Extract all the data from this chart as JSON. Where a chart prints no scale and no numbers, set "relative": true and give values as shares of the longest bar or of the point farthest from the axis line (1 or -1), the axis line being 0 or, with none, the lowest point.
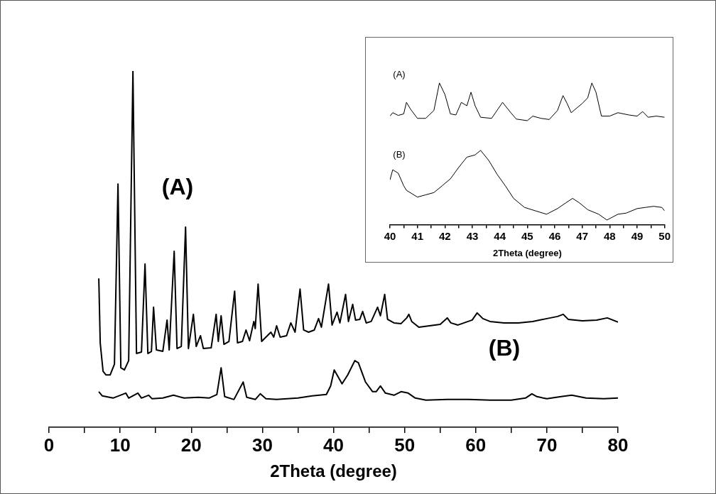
{
  "chart_data": [
    {
      "type": "line",
      "relative": true,
      "xlabel": "2Theta (degree)",
      "xlim": [
        0,
        80
      ],
      "xticks": [
        0,
        {
          "value": 5,
          "label": null
        },
        10,
        {
          "value": 15,
          "label": null
        },
        20,
        {
          "value": 25,
          "label": null
        },
        30,
        {
          "value": 35,
          "label": null
        },
        40,
        {
          "value": 45,
          "label": null
        },
        50,
        {
          "value": 55,
          "label": null
        },
        60,
        {
          "value": 65,
          "label": null
        },
        70,
        {
          "value": 75,
          "label": null
        },
        80
      ],
      "series": [
        {
          "color": "#000000",
          "x": [
            7.0,
            7.2,
            7.6,
            8.0,
            8.6,
            9.2,
            9.7,
            10.1,
            10.6,
            11.2,
            11.8,
            12.3,
            13.0,
            13.5,
            13.9,
            14.4,
            14.7,
            15.1,
            16.0,
            16.6,
            16.9,
            17.6,
            18.0,
            18.6,
            19.2,
            19.6,
            20.3,
            20.7,
            21.3,
            21.7,
            22.8,
            23.5,
            23.8,
            24.2,
            24.6,
            25.3,
            26.1,
            26.5,
            27.2,
            27.7,
            28.2,
            28.8,
            29.0,
            29.4,
            29.9,
            30.5,
            31.2,
            31.6,
            32.0,
            32.5,
            33.4,
            34.0,
            34.6,
            35.3,
            35.8,
            36.5,
            37.3,
            37.9,
            38.3,
            39.3,
            39.8,
            40.5,
            40.9,
            41.7,
            42.1,
            42.7,
            43.1,
            43.7,
            44.1,
            44.6,
            45.3,
            46.2,
            46.6,
            47.2,
            47.6,
            48.5,
            49.5,
            50.3,
            50.6,
            51.0,
            52.0,
            53.5,
            55.0,
            56.0,
            56.5,
            57.5,
            59.5,
            60.2,
            61.0,
            62.0,
            64.0,
            66.0,
            68.0,
            70.0,
            71.5,
            72.3,
            73.0,
            75.0,
            77.0,
            78.5,
            80.0
          ],
          "values": [
            0.418,
            0.237,
            0.157,
            0.147,
            0.147,
            0.177,
            0.683,
            0.167,
            0.161,
            0.187,
            1,
            0.207,
            0.211,
            0.458,
            0.207,
            0.213,
            0.337,
            0.217,
            0.213,
            0.301,
            0.217,
            0.494,
            0.221,
            0.227,
            0.562,
            0.221,
            0.317,
            0.227,
            0.257,
            0.221,
            0.223,
            0.317,
            0.241,
            0.313,
            0.233,
            0.241,
            0.382,
            0.237,
            0.241,
            0.273,
            0.243,
            0.297,
            0.277,
            0.402,
            0.241,
            0.253,
            0.267,
            0.253,
            0.285,
            0.253,
            0.257,
            0.293,
            0.267,
            0.388,
            0.273,
            0.267,
            0.273,
            0.305,
            0.281,
            0.402,
            0.287,
            0.323,
            0.293,
            0.373,
            0.297,
            0.345,
            0.301,
            0.303,
            0.325,
            0.293,
            0.297,
            0.337,
            0.313,
            0.373,
            0.303,
            0.293,
            0.291,
            0.307,
            0.317,
            0.297,
            0.281,
            0.285,
            0.289,
            0.307,
            0.293,
            0.287,
            0.301,
            0.321,
            0.305,
            0.297,
            0.293,
            0.293,
            0.297,
            0.305,
            0.311,
            0.317,
            0.303,
            0.299,
            0.301,
            0.307,
            0.295
          ]
        },
        {
          "color": "#000000",
          "x": [
            7.0,
            7.5,
            9.0,
            10.8,
            11.2,
            12.5,
            13.0,
            14.0,
            14.5,
            16.0,
            17.5,
            19.0,
            21.0,
            22.5,
            23.6,
            24.2,
            24.7,
            26.0,
            27.3,
            27.8,
            29.0,
            29.7,
            30.5,
            32.0,
            35.0,
            37.0,
            39.0,
            39.6,
            40.1,
            40.5,
            41.2,
            42.0,
            43.0,
            43.5,
            44.5,
            45.5,
            46.0,
            46.6,
            47.3,
            48.5,
            49.5,
            50.5,
            51.5,
            53.0,
            56.0,
            59.0,
            62.0,
            65.0,
            67.0,
            67.9,
            68.6,
            70.0,
            72.0,
            73.5,
            75.5,
            78.0,
            80.0
          ],
          "values": [
            0.1,
            0.088,
            0.082,
            0.096,
            0.082,
            0.096,
            0.082,
            0.09,
            0.08,
            0.082,
            0.09,
            0.082,
            0.084,
            0.082,
            0.092,
            0.167,
            0.086,
            0.078,
            0.127,
            0.084,
            0.078,
            0.094,
            0.08,
            0.078,
            0.082,
            0.088,
            0.092,
            0.116,
            0.161,
            0.147,
            0.122,
            0.147,
            0.187,
            0.181,
            0.127,
            0.1,
            0.1,
            0.116,
            0.096,
            0.09,
            0.1,
            0.096,
            0.082,
            0.076,
            0.078,
            0.078,
            0.076,
            0.076,
            0.082,
            0.094,
            0.086,
            0.08,
            0.086,
            0.09,
            0.082,
            0.08,
            0.082
          ]
        }
      ],
      "annotations": [
        "(A)",
        "(B)"
      ]
    },
    {
      "type": "line",
      "relative": true,
      "xlabel": "2Theta (degree)",
      "xlim": [
        40,
        50
      ],
      "xticks": [
        40,
        {
          "value": 40.5,
          "label": null
        },
        41,
        {
          "value": 41.5,
          "label": null
        },
        42,
        {
          "value": 42.5,
          "label": null
        },
        43,
        {
          "value": 43.5,
          "label": null
        },
        44,
        {
          "value": 44.5,
          "label": null
        },
        45,
        {
          "value": 45.5,
          "label": null
        },
        46,
        {
          "value": 46.5,
          "label": null
        },
        47,
        {
          "value": 47.5,
          "label": null
        },
        48,
        {
          "value": 48.5,
          "label": null
        },
        49,
        {
          "value": 49.5,
          "label": null
        },
        50
      ],
      "series": [
        {
          "color": "#000000",
          "x": [
            40.0,
            40.1,
            40.3,
            40.5,
            40.6,
            40.75,
            41.0,
            41.3,
            41.6,
            41.8,
            42.0,
            42.2,
            42.4,
            42.6,
            42.8,
            42.95,
            43.1,
            43.3,
            43.7,
            44.1,
            44.4,
            44.6,
            45.0,
            45.2,
            45.5,
            45.8,
            46.1,
            46.3,
            46.45,
            46.6,
            46.8,
            47.0,
            47.2,
            47.35,
            47.5,
            47.7,
            48.0,
            48.3,
            48.7,
            49.0,
            49.2,
            49.4,
            49.7,
            50.0
          ],
          "values": [
            0.766,
            0.79,
            0.771,
            0.782,
            0.863,
            0.815,
            0.75,
            0.75,
            0.806,
            1,
            0.919,
            0.782,
            0.774,
            0.863,
            0.839,
            0.935,
            0.839,
            0.758,
            0.75,
            0.863,
            0.79,
            0.745,
            0.734,
            0.766,
            0.75,
            0.742,
            0.806,
            0.911,
            0.855,
            0.79,
            0.823,
            0.855,
            0.895,
            1,
            0.935,
            0.766,
            0.766,
            0.79,
            0.774,
            0.766,
            0.798,
            0.758,
            0.766,
            0.758
          ]
        },
        {
          "color": "#000000",
          "x": [
            40.0,
            40.1,
            40.3,
            40.5,
            40.6,
            41.0,
            41.3,
            41.6,
            41.9,
            42.2,
            42.5,
            42.8,
            43.1,
            43.3,
            43.6,
            43.9,
            44.2,
            44.5,
            44.9,
            45.3,
            45.7,
            46.1,
            46.4,
            46.65,
            46.9,
            47.2,
            47.6,
            47.9,
            48.3,
            48.6,
            49.0,
            49.3,
            49.6,
            49.9,
            50.0
          ],
          "values": [
            0.315,
            0.387,
            0.363,
            0.274,
            0.242,
            0.194,
            0.21,
            0.226,
            0.274,
            0.323,
            0.403,
            0.476,
            0.492,
            0.524,
            0.452,
            0.355,
            0.274,
            0.185,
            0.121,
            0.097,
            0.073,
            0.113,
            0.153,
            0.185,
            0.153,
            0.105,
            0.073,
            0.032,
            0.073,
            0.081,
            0.113,
            0.121,
            0.129,
            0.121,
            0.097
          ]
        }
      ],
      "annotations": [
        "(A)",
        "(B)"
      ]
    }
  ]
}
